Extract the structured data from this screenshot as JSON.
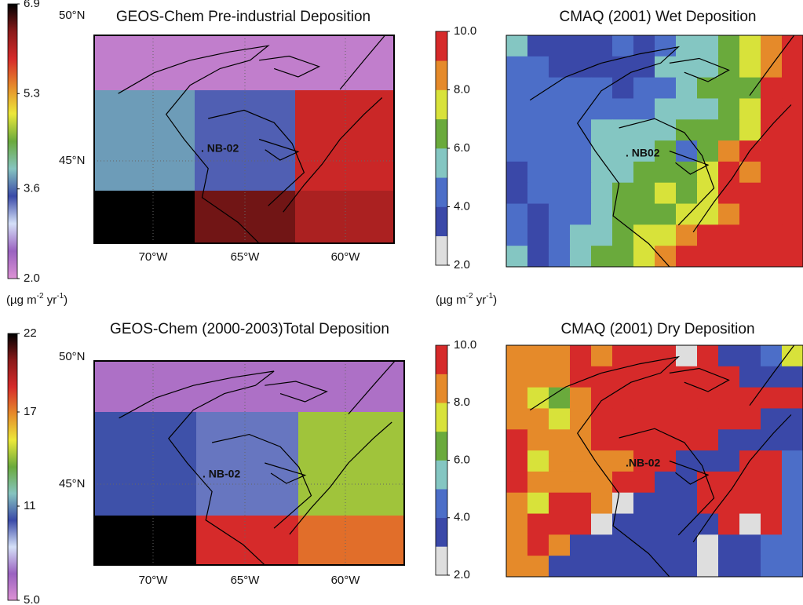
{
  "units": {
    "base1": "(µg m",
    "exp1": "-2",
    "base2": " yr",
    "exp2": "-1",
    "close": ")"
  },
  "panels": [
    {
      "title": "GEOS-Chem Pre-industrial Deposition",
      "lat_labels": [
        "50°N",
        "45°N"
      ],
      "lon_labels": [
        "70°W",
        "65°W",
        "60°W"
      ],
      "site": ". NB-02",
      "site_color": "#ffffff",
      "colorbar": {
        "lim": [
          2.0,
          6.9
        ],
        "ticks": [
          {
            "value": 2.0,
            "label": "2.0"
          },
          3.6,
          5.3,
          6.9
        ],
        "discrete": false,
        "colors": [
          "#dc92d4",
          "#9a62c0",
          "#d4e0f8",
          "#3a4aa8",
          "#86c4c0",
          "#6aaa3c",
          "#ece83a",
          "#e68a2a",
          "#d62a2a",
          "#8a1a1a",
          "#000000"
        ]
      },
      "grid": [
        [
          2.2,
          2.2,
          2.2
        ],
        [
          3.8,
          3.4,
          6.0
        ],
        [
          6.9,
          6.5,
          6.2
        ]
      ]
    },
    {
      "title": "CMAQ (2001) Wet Deposition",
      "lat_labels": [],
      "lon_labels": [],
      "site": ". NB02",
      "site_color": "#111111",
      "colorbar": {
        "lim": [
          2.0,
          10.0
        ],
        "ticks": [
          {
            "value": 2.0,
            "label": "2.0"
          },
          {
            "value": 4.0,
            "label": "4.0"
          },
          {
            "value": 6.0,
            "label": "6.0"
          },
          {
            "value": 8.0,
            "label": "8.0"
          },
          {
            "value": 10.0,
            "label": "10.0"
          }
        ],
        "discrete": true,
        "colors": [
          "#dedede",
          "#3a48a8",
          "#4c6ec8",
          "#84c6c2",
          "#6aaa3c",
          "#d8e23a",
          "#e58a2a",
          "#d62a2a"
        ]
      },
      "grid": [
        [
          5.5,
          3.5,
          3.5,
          3.5,
          3.5,
          4.5,
          3.5,
          4.5,
          5.5,
          5.5,
          6.5,
          7.5,
          8.5,
          9.5
        ],
        [
          4.5,
          4.5,
          3.5,
          3.5,
          3.5,
          3.5,
          3.5,
          5.5,
          5.5,
          5.5,
          6.5,
          7.5,
          8.5,
          9.5
        ],
        [
          4.5,
          4.5,
          4.5,
          4.5,
          4.5,
          3.5,
          4.5,
          4.5,
          5.5,
          6.5,
          6.5,
          6.5,
          9.5,
          9.5
        ],
        [
          4.5,
          4.5,
          4.5,
          4.5,
          4.5,
          4.5,
          4.5,
          5.5,
          5.5,
          5.5,
          6.5,
          7.5,
          9.5,
          9.5
        ],
        [
          4.5,
          4.5,
          4.5,
          4.5,
          5.5,
          5.5,
          5.5,
          5.5,
          6.5,
          6.5,
          6.5,
          7.5,
          9.5,
          9.5
        ],
        [
          4.5,
          4.5,
          4.5,
          4.5,
          5.5,
          5.5,
          5.5,
          6.5,
          4.5,
          6.5,
          8.5,
          9.5,
          9.5,
          9.5
        ],
        [
          3.5,
          4.5,
          4.5,
          4.5,
          5.5,
          5.5,
          6.5,
          6.5,
          6.5,
          7.5,
          9.5,
          8.5,
          9.5,
          9.5
        ],
        [
          3.5,
          4.5,
          4.5,
          4.5,
          5.5,
          6.5,
          6.5,
          7.5,
          6.5,
          7.5,
          9.5,
          9.5,
          9.5,
          9.5
        ],
        [
          4.5,
          3.5,
          4.5,
          4.5,
          5.5,
          6.5,
          6.5,
          6.5,
          7.5,
          7.5,
          8.5,
          9.5,
          9.5,
          9.5
        ],
        [
          4.5,
          3.5,
          4.5,
          5.5,
          5.5,
          6.5,
          7.5,
          7.5,
          8.5,
          9.5,
          9.5,
          9.5,
          9.5,
          9.5
        ],
        [
          5.5,
          3.5,
          4.5,
          5.5,
          6.5,
          6.5,
          7.5,
          8.5,
          9.5,
          9.5,
          9.5,
          9.5,
          9.5,
          9.5
        ]
      ]
    },
    {
      "title": "GEOS-Chem (2000-2003)Total Deposition",
      "lat_labels": [
        "50°N",
        "45°N"
      ],
      "lon_labels": [
        "70°W",
        "65°W",
        "60°W"
      ],
      "site": ". NB-02",
      "site_color": "#ffffff",
      "colorbar": {
        "lim": [
          5.0,
          22
        ],
        "ticks": [
          {
            "value": 5.0,
            "label": "5.0"
          },
          11,
          17,
          22
        ],
        "discrete": false,
        "colors": [
          "#dc92d4",
          "#9a62c0",
          "#d4e0f8",
          "#3a4aa8",
          "#86c4c0",
          "#6aaa3c",
          "#ece83a",
          "#e68a2a",
          "#d62a2a",
          "#8a1a1a",
          "#000000"
        ]
      },
      "grid": [
        [
          6.2,
          6.2,
          6.2
        ],
        [
          10.2,
          9.6,
          14.2
        ],
        [
          22,
          18.6,
          17.4
        ]
      ]
    },
    {
      "title": "CMAQ (2001) Dry Deposition",
      "lat_labels": [],
      "lon_labels": [],
      "site": ".NB-02",
      "site_color": "#111111",
      "colorbar": {
        "lim": [
          2.0,
          10.0
        ],
        "ticks": [
          {
            "value": 2.0,
            "label": "2.0"
          },
          {
            "value": 4.0,
            "label": "4.0"
          },
          {
            "value": 6.0,
            "label": "6.0"
          },
          {
            "value": 8.0,
            "label": "8.0"
          },
          {
            "value": 10.0,
            "label": "10.0"
          }
        ],
        "discrete": true,
        "colors": [
          "#dedede",
          "#3a48a8",
          "#4c6ec8",
          "#84c6c2",
          "#6aaa3c",
          "#d8e23a",
          "#e58a2a",
          "#d62a2a"
        ]
      },
      "grid": [
        [
          8.5,
          8.5,
          8.5,
          9.5,
          8.5,
          9.5,
          9.5,
          9.5,
          2.5,
          9.5,
          3.5,
          3.5,
          4.5,
          7.5
        ],
        [
          8.5,
          8.5,
          8.5,
          9.5,
          9.5,
          9.5,
          9.5,
          9.5,
          9.5,
          9.5,
          9.5,
          3.5,
          3.5,
          3.5
        ],
        [
          8.5,
          7.5,
          6.5,
          8.5,
          9.5,
          9.5,
          9.5,
          9.5,
          9.5,
          9.5,
          9.5,
          9.5,
          9.5,
          9.5
        ],
        [
          8.5,
          8.5,
          7.5,
          8.5,
          9.5,
          9.5,
          9.5,
          9.5,
          9.5,
          9.5,
          9.5,
          9.5,
          3.5,
          3.5
        ],
        [
          9.5,
          8.5,
          8.5,
          8.5,
          9.5,
          9.5,
          9.5,
          9.5,
          9.5,
          9.5,
          3.5,
          3.5,
          3.5,
          3.5
        ],
        [
          9.5,
          7.5,
          8.5,
          8.5,
          8.5,
          8.5,
          9.5,
          9.5,
          3.5,
          3.5,
          3.5,
          9.5,
          9.5,
          4.5
        ],
        [
          9.5,
          8.5,
          8.5,
          8.5,
          8.5,
          9.5,
          9.5,
          3.5,
          3.5,
          9.5,
          9.5,
          9.5,
          9.5,
          4.5
        ],
        [
          8.5,
          7.5,
          9.5,
          9.5,
          8.5,
          2.5,
          3.5,
          3.5,
          3.5,
          9.5,
          9.5,
          9.5,
          9.5,
          4.5
        ],
        [
          8.5,
          9.5,
          9.5,
          9.5,
          2.5,
          3.5,
          3.5,
          3.5,
          3.5,
          3.5,
          9.5,
          2.5,
          9.5,
          4.5
        ],
        [
          8.5,
          9.5,
          8.5,
          3.5,
          3.5,
          3.5,
          3.5,
          3.5,
          3.5,
          2.5,
          3.5,
          3.5,
          4.5,
          4.5
        ],
        [
          8.5,
          8.5,
          3.5,
          3.5,
          3.5,
          3.5,
          3.5,
          3.5,
          3.5,
          2.5,
          3.5,
          3.5,
          4.5,
          4.5
        ]
      ]
    }
  ]
}
